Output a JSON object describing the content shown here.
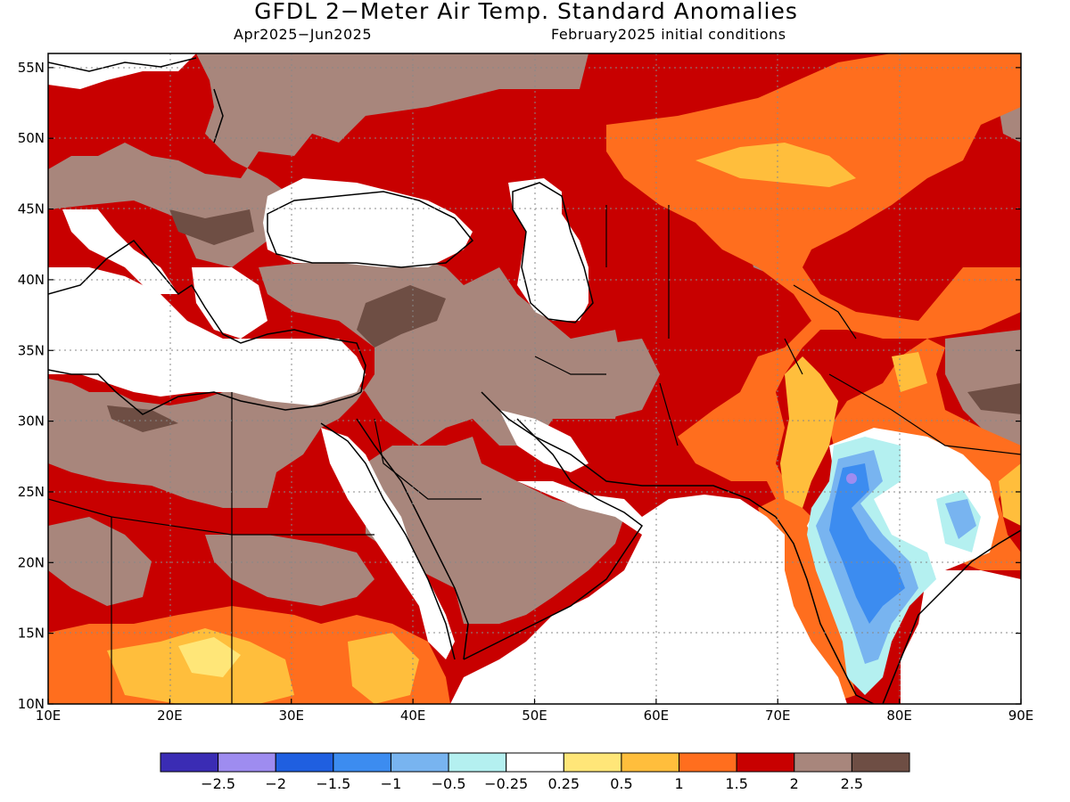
{
  "header": {
    "title": "GFDL 2−Meter Air Temp. Standard Anomalies",
    "period": "Apr2025−Jun2025",
    "init": "February2025 initial conditions"
  },
  "map": {
    "lon_range": [
      10,
      90
    ],
    "lat_range": [
      10,
      56
    ],
    "lon_ticks": [
      "10E",
      "20E",
      "30E",
      "40E",
      "50E",
      "60E",
      "70E",
      "80E",
      "90E"
    ],
    "lat_ticks": [
      "10N",
      "15N",
      "20N",
      "25N",
      "30N",
      "35N",
      "40N",
      "45N",
      "50N",
      "55N"
    ],
    "grid": "dotted"
  },
  "legend": {
    "colors": [
      "#3a2cb4",
      "#9e8cf0",
      "#1f5fe0",
      "#3c8cf0",
      "#78b4f0",
      "#b4f0f0",
      "#ffffff",
      "#ffe678",
      "#ffbe3c",
      "#ff6e1e",
      "#c80000",
      "#a8867c",
      "#6e4e44"
    ],
    "labels": [
      "−2.5",
      "−2",
      "−1.5",
      "−1",
      "−0.5",
      "−0.25",
      "0.25",
      "0.5",
      "1",
      "1.5",
      "2",
      "2.5"
    ]
  },
  "colors": {
    "brown": "#a8867c",
    "dark_brown": "#6e4e44",
    "red": "#c80000",
    "orange": "#ff6e1e",
    "light_orange": "#ffbe3c",
    "yellow": "#ffe678",
    "light_cyan": "#b4f0f0",
    "light_blue": "#78b4f0",
    "blue": "#3c8cf0",
    "purple": "#9e8cf0"
  }
}
